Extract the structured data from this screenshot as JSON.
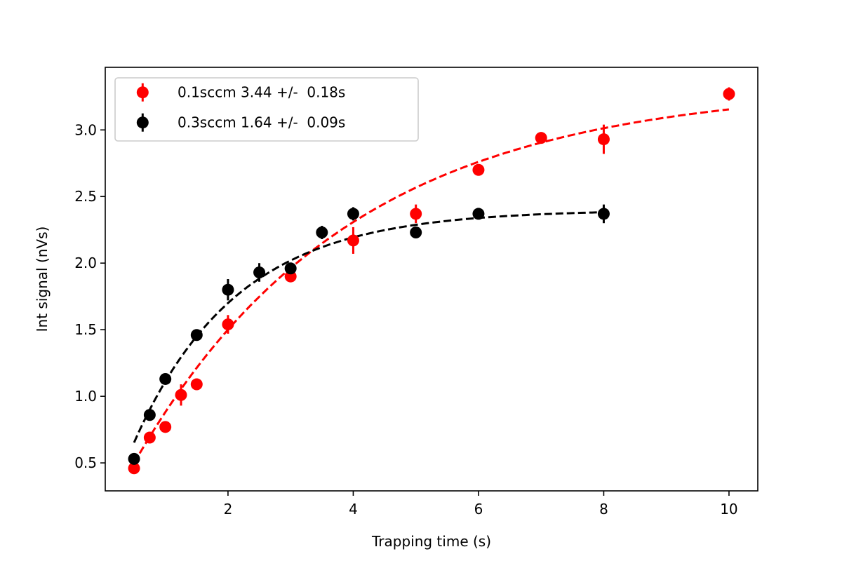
{
  "chart_data": {
    "type": "scatter",
    "title": "",
    "xlabel": "Trapping time (s)",
    "ylabel": "Int signal (nVs)",
    "xlim": [
      0.04,
      10.46
    ],
    "ylim": [
      0.29,
      3.47
    ],
    "xticks": [
      2,
      4,
      6,
      8,
      10
    ],
    "xtick_labels": [
      "2",
      "4",
      "6",
      "8",
      "10"
    ],
    "yticks": [
      0.5,
      1.0,
      1.5,
      2.0,
      2.5,
      3.0
    ],
    "ytick_labels": [
      "0.5",
      "1.0",
      "1.5",
      "2.0",
      "2.5",
      "3.0"
    ],
    "grid": false,
    "legend_position": "top-left",
    "series": [
      {
        "name": "0.1sccm 3.44 +/-  0.18s",
        "color": "#ff0000",
        "x": [
          0.5,
          0.75,
          1.0,
          1.25,
          1.5,
          2.0,
          3.0,
          4.0,
          5.0,
          6.0,
          7.0,
          8.0,
          10.0
        ],
        "y": [
          0.46,
          0.69,
          0.77,
          1.01,
          1.09,
          1.54,
          1.9,
          2.17,
          2.37,
          2.7,
          2.94,
          2.93,
          3.27
        ],
        "yerr": [
          0.02,
          0.02,
          0.02,
          0.08,
          0.02,
          0.07,
          0.02,
          0.1,
          0.07,
          0.02,
          0.03,
          0.11,
          0.05
        ],
        "fit": {
          "model": "A*(1-exp(-t/tau))+c",
          "A": 3.278,
          "tau": 3.44,
          "c": 0.055,
          "t_range": [
            0.5,
            10.0
          ]
        }
      },
      {
        "name": "0.3sccm 1.64 +/-  0.09s",
        "color": "#000000",
        "x": [
          0.5,
          0.75,
          1.0,
          1.5,
          2.0,
          2.5,
          3.0,
          3.5,
          4.0,
          5.0,
          6.0,
          8.0
        ],
        "y": [
          0.53,
          0.86,
          1.13,
          1.46,
          1.8,
          1.93,
          1.96,
          2.23,
          2.37,
          2.23,
          2.37,
          2.37
        ],
        "yerr": [
          0.02,
          0.02,
          0.02,
          0.02,
          0.08,
          0.07,
          0.03,
          0.05,
          0.05,
          0.02,
          0.04,
          0.07
        ],
        "fit": {
          "model": "A*(1-exp(-t/tau))+c",
          "A": 2.37,
          "tau": 1.64,
          "c": 0.03,
          "t_range": [
            0.5,
            8.0
          ]
        }
      }
    ]
  }
}
